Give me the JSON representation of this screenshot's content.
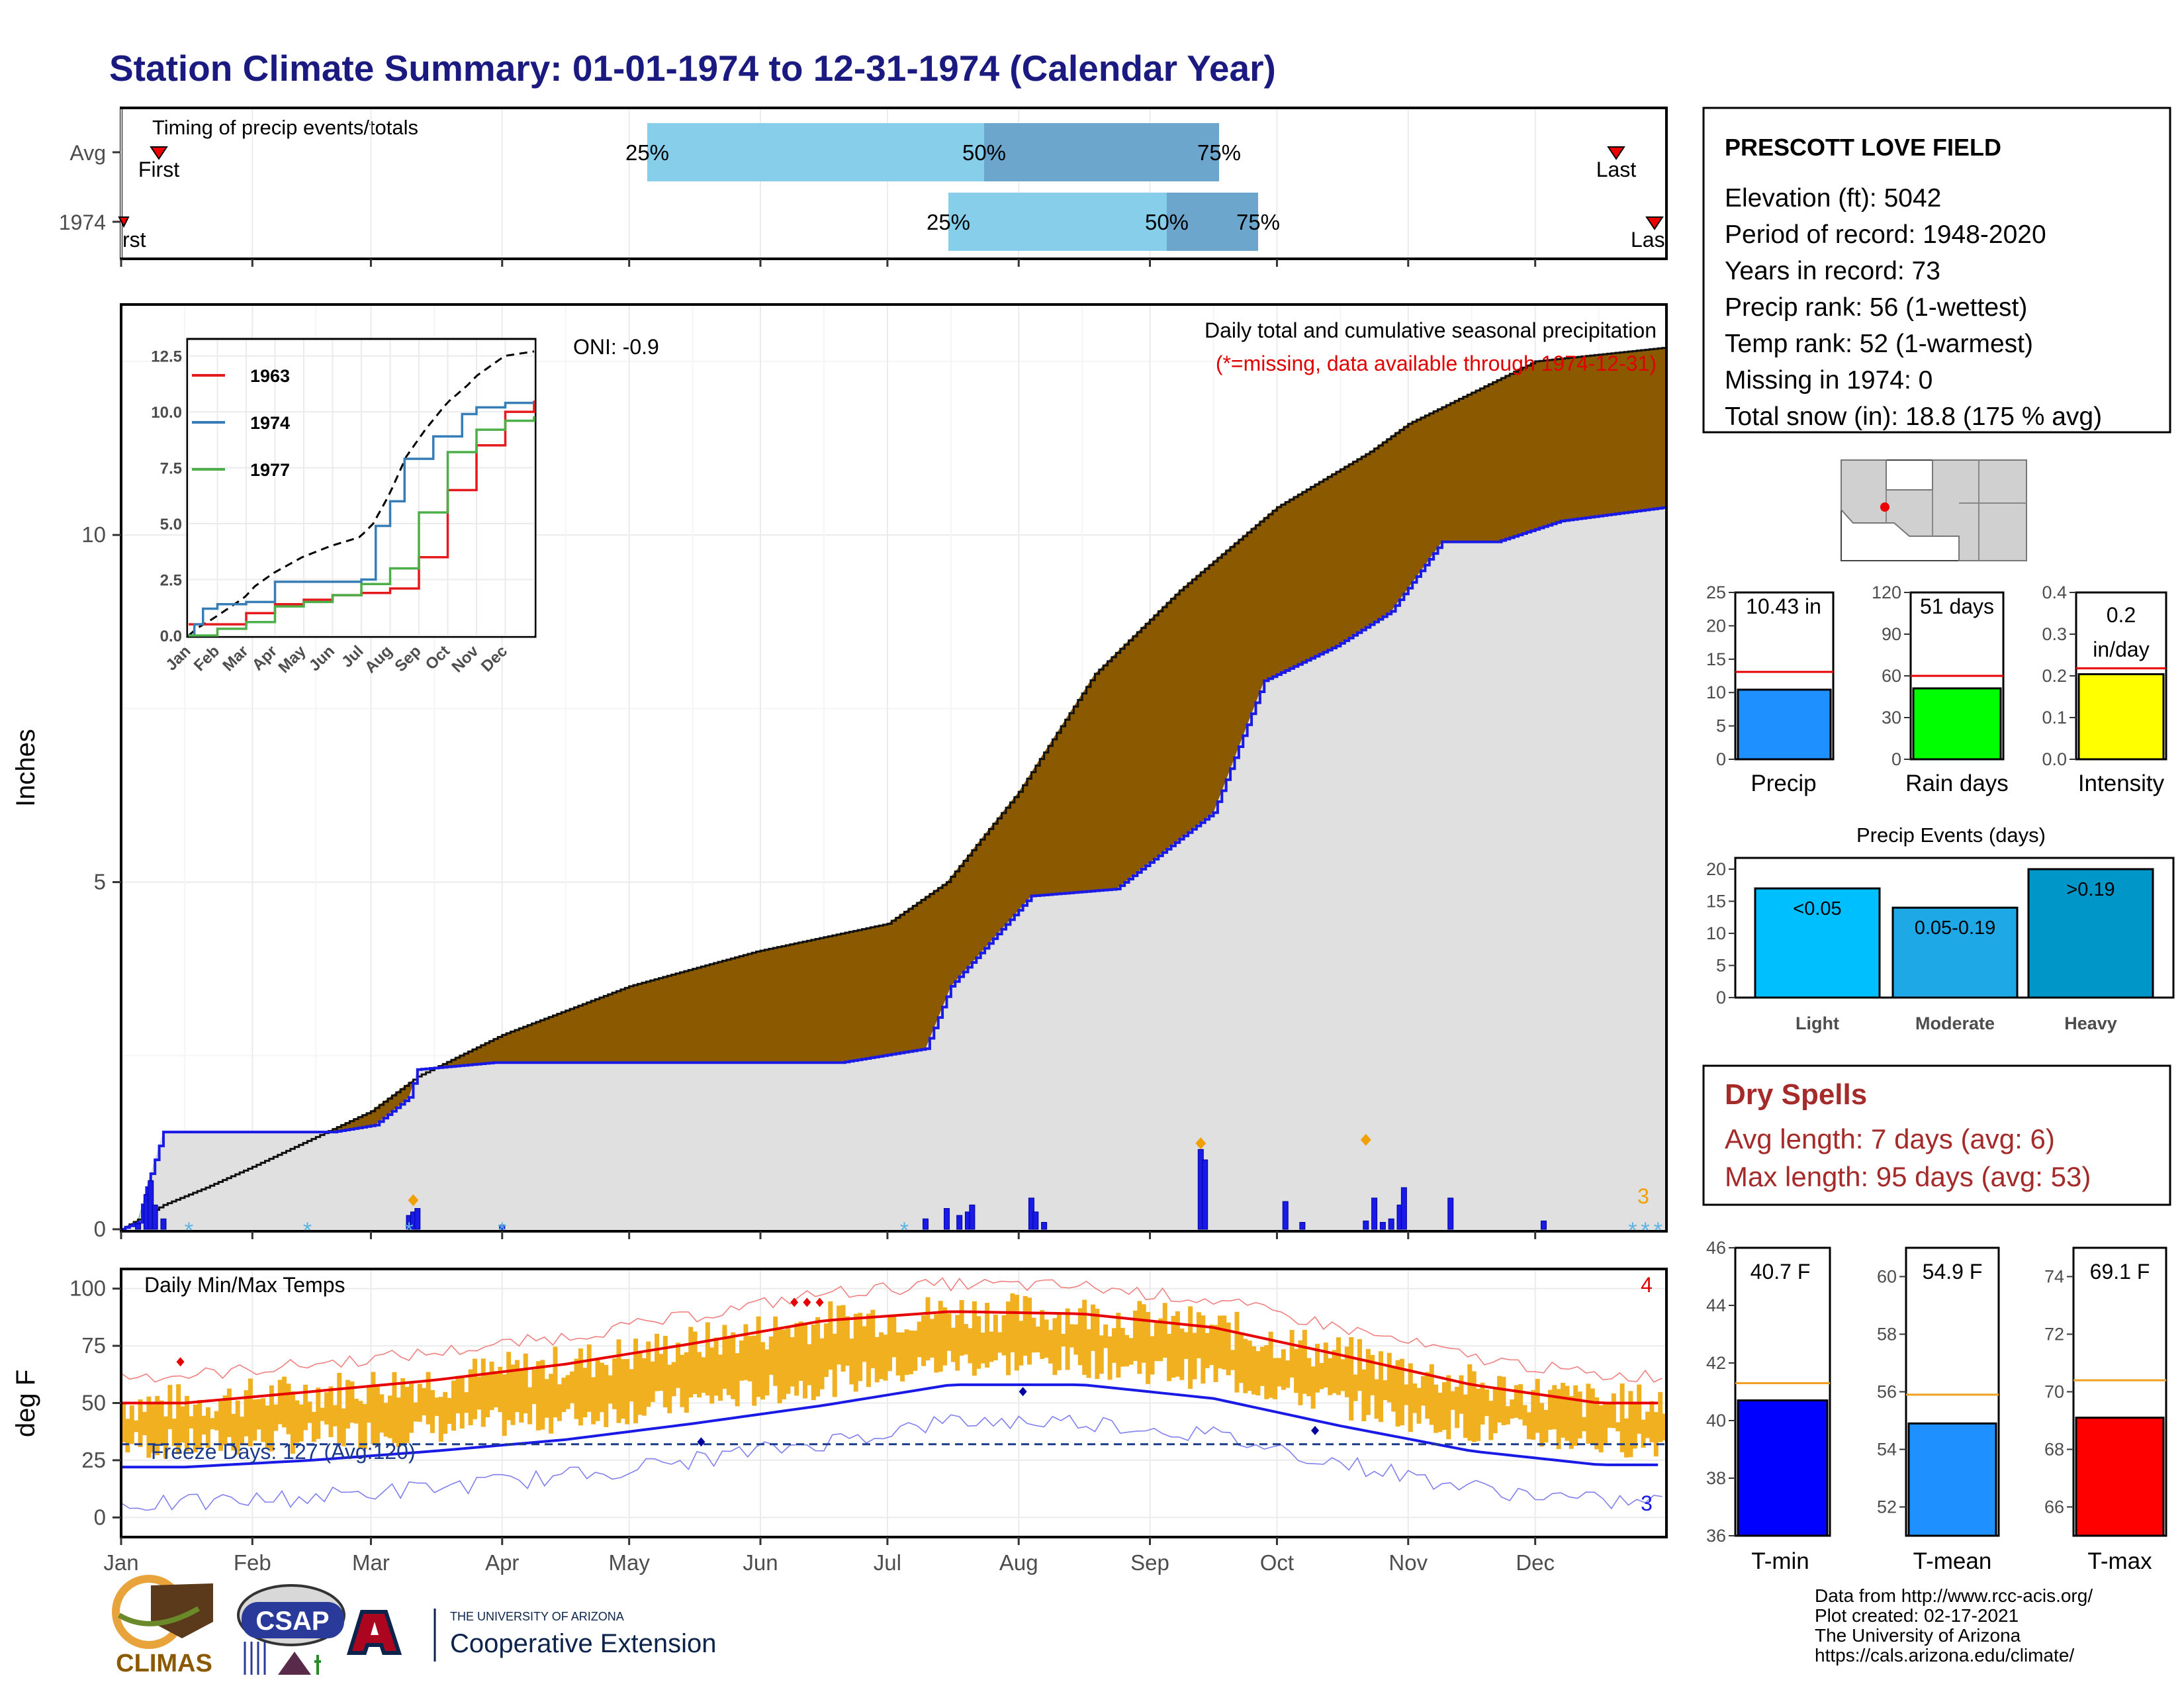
{
  "title": "Station Climate Summary: 01-01-1974 to 12-31-1974 (Calendar Year)",
  "colors": {
    "title": "#1a1a80",
    "precip_above": "#8b5a00",
    "precip_below": "#228b22",
    "avg_area": "#e0e0e0",
    "obs_line": "#1a1ae6",
    "temp_bar": "#f0b020",
    "tmax_line": "#e60000",
    "tmin_line": "#1a1ae6",
    "dryspell": "#a52a2a"
  },
  "timing": {
    "label": "Timing of precip events/totals",
    "rows": [
      "Avg",
      "1974"
    ],
    "first_label": "First",
    "last_label": "Last",
    "first_label_2": "rst",
    "last_label_2": "Las",
    "pct_labels": [
      "25%",
      "50%",
      "75%"
    ]
  },
  "station": {
    "name": "PRESCOTT LOVE FIELD",
    "lines": [
      "Elevation (ft): 5042",
      "Period of record: 1948-2020",
      "Years in record: 73",
      "Precip rank: 56 (1-wettest)",
      "Temp rank: 52 (1-warmest)",
      "Missing in 1974: 0",
      "Total snow (in): 18.8 (175 % avg)"
    ]
  },
  "precip_chart": {
    "ylabel": "Inches",
    "oni": "ONI: -0.9",
    "subtitle": "Daily total and cumulative seasonal precipitation",
    "missing_note": "(*=missing, data available through 1974-12-31)",
    "snow_count": "3"
  },
  "inset": {
    "legend": [
      "1963",
      "1974",
      "1977"
    ]
  },
  "temp_chart": {
    "ylabel": "deg F",
    "label": "Daily Min/Max Temps",
    "freeze": "Freeze Days: 127 (Avg:120)",
    "record_hi_count": "4",
    "record_lo_count": "3"
  },
  "months": [
    "Jan",
    "Feb",
    "Mar",
    "Apr",
    "May",
    "Jun",
    "Jul",
    "Aug",
    "Sep",
    "Oct",
    "Nov",
    "Dec"
  ],
  "summary_bars": {
    "precip": {
      "label": "Precip",
      "value_text": "10.43 in",
      "value": 10.43,
      "avg": 13.1,
      "ymax": 25,
      "ticks": [
        "0",
        "5",
        "10",
        "15",
        "20",
        "25"
      ]
    },
    "raindays": {
      "label": "Rain days",
      "value_text": "51 days",
      "value": 51,
      "avg": 60,
      "ymax": 120,
      "ticks": [
        "0",
        "30",
        "60",
        "90",
        "120"
      ]
    },
    "intensity": {
      "label": "Intensity",
      "value_text_1": "0.2",
      "value_text_2": "in/day",
      "value": 0.204,
      "avg": 0.218,
      "ymax": 0.4,
      "ticks": [
        "0.0",
        "0.1",
        "0.2",
        "0.3",
        "0.4"
      ]
    }
  },
  "precip_events": {
    "title": "Precip Events (days)",
    "categories": [
      "Light",
      "Moderate",
      "Heavy"
    ],
    "bar_labels": [
      "<0.05",
      "0.05-0.19",
      ">0.19"
    ],
    "values": [
      17,
      14,
      20
    ],
    "ticks": [
      "0",
      "5",
      "10",
      "15",
      "20"
    ]
  },
  "dry_spells": {
    "title": "Dry Spells",
    "avg": "Avg length: 7 days (avg: 6)",
    "max": "Max length: 95 days (avg: 53)"
  },
  "temp_bars": {
    "tmin": {
      "label": "T-min",
      "value_text": "40.7 F",
      "value": 40.7,
      "avg": 41.3,
      "ymin": 36,
      "ymax": 46,
      "ticks": [
        "36",
        "38",
        "40",
        "42",
        "44",
        "46"
      ]
    },
    "tmean": {
      "label": "T-mean",
      "value_text": "54.9 F",
      "value": 54.9,
      "avg": 55.9,
      "ymin": 51,
      "ymax": 61,
      "ticks": [
        "52",
        "54",
        "56",
        "58",
        "60"
      ]
    },
    "tmax": {
      "label": "T-max",
      "value_text": "69.1 F",
      "value": 69.1,
      "avg": 70.4,
      "ymin": 65,
      "ymax": 75,
      "ticks": [
        "66",
        "68",
        "70",
        "72",
        "74"
      ]
    }
  },
  "credits": [
    "Data from http://www.rcc-acis.org/",
    "Plot created: 02-17-2021",
    "The University of Arizona",
    "https://cals.arizona.edu/climate/"
  ],
  "logos": {
    "climas": "CLIMAS",
    "csap": "CSAP",
    "ua_small": "THE UNIVERSITY OF ARIZONA",
    "coop": "Cooperative Extension"
  },
  "chart_data": {
    "type": "area",
    "title": "Daily total and cumulative seasonal precipitation",
    "ylabel": "Inches",
    "ylim": [
      0,
      13.3
    ],
    "x_ticks": [
      "Jan",
      "Feb",
      "Mar",
      "Apr",
      "May",
      "Jun",
      "Jul",
      "Aug",
      "Sep",
      "Oct",
      "Nov",
      "Dec"
    ],
    "series": [
      {
        "name": "cumulative average (day of year, inches)",
        "x": [
          0,
          10,
          20,
          31,
          45,
          59,
          70,
          90,
          120,
          150,
          181,
          195,
          212,
          230,
          250,
          273,
          295,
          304,
          334,
          365
        ],
        "y": [
          0,
          0.35,
          0.6,
          0.9,
          1.3,
          1.7,
          2.2,
          2.8,
          3.5,
          4.0,
          4.4,
          5.0,
          6.3,
          8.0,
          9.2,
          10.4,
          11.2,
          11.6,
          12.5,
          12.7
        ]
      },
      {
        "name": "cumulative 1974 (day of year, inches)",
        "x": [
          0,
          4,
          6,
          8,
          10,
          50,
          60,
          68,
          70,
          88,
          98,
          170,
          190,
          196,
          215,
          235,
          258,
          270,
          287,
          300,
          312,
          325,
          340,
          365
        ],
        "y": [
          0,
          0.1,
          0.6,
          1.0,
          1.4,
          1.4,
          1.5,
          1.9,
          2.3,
          2.4,
          2.4,
          2.4,
          2.6,
          3.5,
          4.8,
          4.9,
          6.0,
          7.9,
          8.4,
          8.9,
          9.9,
          9.9,
          10.2,
          10.4
        ]
      }
    ],
    "daily_bars": {
      "x": [
        4,
        6,
        7,
        8,
        10,
        68,
        69,
        70,
        90,
        190,
        195,
        198,
        200,
        201,
        215,
        216,
        218,
        255,
        256,
        275,
        279,
        294,
        296,
        298,
        300,
        302,
        303,
        314,
        336
      ],
      "y": [
        0.08,
        0.5,
        0.7,
        0.35,
        0.15,
        0.2,
        0.25,
        0.3,
        0.06,
        0.15,
        0.3,
        0.2,
        0.25,
        0.35,
        0.45,
        0.25,
        0.1,
        1.15,
        1.0,
        0.4,
        0.1,
        0.12,
        0.45,
        0.1,
        0.15,
        0.35,
        0.6,
        0.45,
        0.12
      ]
    },
    "inset": {
      "type": "line",
      "ylim": [
        0,
        13
      ],
      "x_ticks": [
        "Jan",
        "Feb",
        "Mar",
        "Apr",
        "May",
        "Jun",
        "Jul",
        "Aug",
        "Sep",
        "Oct",
        "Nov",
        "Dec"
      ],
      "series": [
        {
          "name": "1963",
          "x": [
            0,
            2,
            3,
            4,
            5,
            6,
            7,
            8,
            9,
            10,
            11,
            12
          ],
          "y": [
            0.5,
            1.0,
            1.4,
            1.6,
            1.8,
            1.9,
            2.1,
            3.5,
            6.5,
            8.5,
            10,
            10.5
          ]
        },
        {
          "name": "1974",
          "x": [
            0,
            0.2,
            0.5,
            1.0,
            2.0,
            3.0,
            5.5,
            6.0,
            6.5,
            7.0,
            7.5,
            8.5,
            9.5,
            10.0,
            11,
            12
          ],
          "y": [
            0,
            0.5,
            1.2,
            1.4,
            1.5,
            2.4,
            2.4,
            2.5,
            4.9,
            6.0,
            7.9,
            8.9,
            9.9,
            10.2,
            10.4,
            10.4
          ]
        },
        {
          "name": "1977",
          "x": [
            0,
            1,
            2,
            3,
            4,
            5,
            6,
            7,
            8,
            9,
            10,
            11,
            12
          ],
          "y": [
            0,
            0.3,
            0.6,
            1.3,
            1.5,
            1.8,
            2.3,
            3.0,
            5.5,
            8.2,
            9.2,
            9.6,
            9.8
          ]
        }
      ]
    },
    "temperature": {
      "ylim": [
        -8,
        108
      ],
      "ticks": [
        0,
        25,
        50,
        75,
        100
      ],
      "freeze_line": 32,
      "avg_tmax_monthly": [
        50,
        55,
        60,
        67,
        76,
        86,
        90,
        89,
        83,
        71,
        58,
        50
      ],
      "avg_tmin_monthly": [
        22,
        25,
        29,
        34,
        41,
        49,
        58,
        58,
        52,
        40,
        29,
        23
      ]
    }
  }
}
